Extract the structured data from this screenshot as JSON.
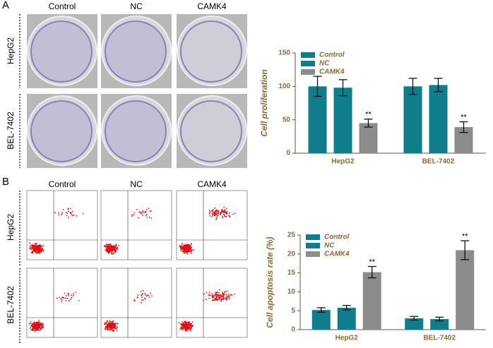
{
  "figure": {
    "panel_labels": [
      "A",
      "B"
    ],
    "photo_columns": [
      "Control",
      "NC",
      "CAMK4"
    ],
    "photo_rows": [
      "HepG2",
      "BEL-7402"
    ],
    "flow_columns": [
      "Control",
      "NC",
      "CAMK4"
    ],
    "flow_rows": [
      "HepG2",
      "BEL-7402"
    ]
  },
  "chart_data": [
    {
      "type": "bar",
      "ylabel": "Cell proliferation",
      "categories": [
        "HepG2",
        "BEL-7402"
      ],
      "series": [
        {
          "name": "Control",
          "color": "#0f7d8c",
          "values": [
            100,
            100
          ],
          "errors": [
            15,
            12
          ]
        },
        {
          "name": "NC",
          "color": "#0f7d8c",
          "values": [
            98,
            102
          ],
          "errors": [
            12,
            10
          ]
        },
        {
          "name": "CAMK4",
          "color": "#8c8c8c",
          "values": [
            45,
            39
          ],
          "errors": [
            6,
            8
          ],
          "significance": [
            "**",
            "**"
          ]
        }
      ],
      "ylim": [
        0,
        150
      ],
      "yticks": [
        0,
        50,
        100,
        150
      ]
    },
    {
      "type": "bar",
      "ylabel": "Cell apoptosis rate (%)",
      "categories": [
        "HepG2",
        "BEL-7402"
      ],
      "series": [
        {
          "name": "Control",
          "color": "#0f7d8c",
          "values": [
            5.2,
            3.0
          ],
          "errors": [
            0.6,
            0.5
          ]
        },
        {
          "name": "NC",
          "color": "#0f7d8c",
          "values": [
            5.8,
            2.8
          ],
          "errors": [
            0.6,
            0.5
          ]
        },
        {
          "name": "CAMK4",
          "color": "#8c8c8c",
          "values": [
            15.2,
            21
          ],
          "errors": [
            1.5,
            2.5
          ],
          "significance": [
            "**",
            "**"
          ]
        }
      ],
      "ylim": [
        0,
        25
      ],
      "yticks": [
        0,
        5,
        10,
        15,
        20,
        25
      ]
    }
  ]
}
